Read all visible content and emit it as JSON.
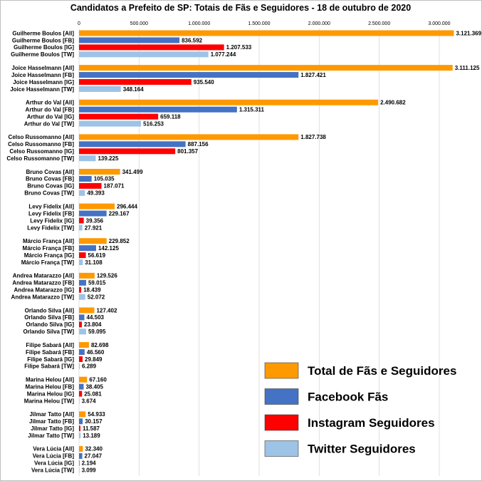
{
  "chart_data": {
    "type": "bar",
    "orientation": "horizontal",
    "title": "Candidatos a Prefeito de SP: Totais de Fãs e Seguidores - 18 de outubro de 2020",
    "xlim": [
      0,
      3200000
    ],
    "xticks": [
      "0",
      "500.000",
      "1.000.000",
      "1.500.000",
      "2.000.000",
      "2.500.000",
      "3.000.000"
    ],
    "xtick_values": [
      0,
      500000,
      1000000,
      1500000,
      2000000,
      2500000,
      3000000
    ],
    "grid": true,
    "legend_position": "bottom-right",
    "series_colors": [
      "#FF9900",
      "#4472C4",
      "#FF0000",
      "#9DC3E6"
    ],
    "legend": [
      "Total de Fãs e Seguidores",
      "Facebook Fãs",
      "Instagram Seguidores",
      "Twitter Seguidores"
    ],
    "groups": [
      {
        "candidate": "Guilherme Boulos",
        "labels": [
          "Guilherme Boulos [All]",
          "Guilherme Boulos [FB]",
          "Guilherme Boulos [IG]",
          "Guilherme Boulos [TW]"
        ],
        "values": [
          3121369,
          836592,
          1207533,
          1077244
        ],
        "display": [
          "3.121.369",
          "836.592",
          "1.207.533",
          "1.077.244"
        ]
      },
      {
        "candidate": "Joice Hasselmann",
        "labels": [
          "Joice Hasselmann [All]",
          "Joice Hasselmann [FB]",
          "Joice Hasselmann [IG]",
          "Joice Hasselmann [TW]"
        ],
        "values": [
          3111125,
          1827421,
          935540,
          348164
        ],
        "display": [
          "3.111.125",
          "1.827.421",
          "935.540",
          "348.164"
        ]
      },
      {
        "candidate": "Arthur do Val",
        "labels": [
          "Arthur do Val [All]",
          "Arthur do Val [FB]",
          "Arthur do Val [IG]",
          "Arthur do Val [TW]"
        ],
        "values": [
          2490682,
          1315311,
          659118,
          516253
        ],
        "display": [
          "2.490.682",
          "1.315.311",
          "659.118",
          "516.253"
        ]
      },
      {
        "candidate": "Celso Russomanno",
        "labels": [
          "Celso Russomanno [All]",
          "Celso Russomanno [FB]",
          "Celso Russomanno [IG]",
          "Celso Russomanno [TW]"
        ],
        "values": [
          1827738,
          887156,
          801357,
          139225
        ],
        "display": [
          "1.827.738",
          "887.156",
          "801.357",
          "139.225"
        ]
      },
      {
        "candidate": "Bruno Covas",
        "labels": [
          "Bruno Covas [All]",
          "Bruno Covas [FB]",
          "Bruno Covas [IG]",
          "Bruno Covas [TW]"
        ],
        "values": [
          341499,
          105035,
          187071,
          49393
        ],
        "display": [
          "341.499",
          "105.035",
          "187.071",
          "49.393"
        ]
      },
      {
        "candidate": "Levy Fidelix",
        "labels": [
          "Levy Fidelix [All]",
          "Levy Fidelix [FB]",
          "Levy Fidelix [IG]",
          "Levy Fidelix [TW]"
        ],
        "values": [
          296444,
          229167,
          39356,
          27921
        ],
        "display": [
          "296.444",
          "229.167",
          "39.356",
          "27.921"
        ]
      },
      {
        "candidate": "Márcio França",
        "labels": [
          "Márcio França [All]",
          "Márcio França [FB]",
          "Márcio França [IG]",
          "Márcio França [TW]"
        ],
        "values": [
          229852,
          142125,
          56619,
          31108
        ],
        "display": [
          "229.852",
          "142.125",
          "56.619",
          "31.108"
        ]
      },
      {
        "candidate": "Andrea Matarazzo",
        "labels": [
          "Andrea Matarazzo [All]",
          "Andrea Matarazzo [FB]",
          "Andrea Matarazzo [IG]",
          "Andrea Matarazzo [TW]"
        ],
        "values": [
          129526,
          59015,
          18439,
          52072
        ],
        "display": [
          "129.526",
          "59.015",
          "18.439",
          "52.072"
        ]
      },
      {
        "candidate": "Orlando Silva",
        "labels": [
          "Orlando Silva [All]",
          "Orlando Silva [FB]",
          "Orlando Silva [IG]",
          "Orlando Silva [TW]"
        ],
        "values": [
          127402,
          44503,
          23804,
          59095
        ],
        "display": [
          "127.402",
          "44.503",
          "23.804",
          "59.095"
        ]
      },
      {
        "candidate": "Filipe Sabará",
        "labels": [
          "Filipe Sabará [All]",
          "Filipe Sabará [FB]",
          "Filipe Sabará [IG]",
          "Filipe Sabará [TW]"
        ],
        "values": [
          82698,
          46560,
          29849,
          6289
        ],
        "display": [
          "82.698",
          "46.560",
          "29.849",
          "6.289"
        ]
      },
      {
        "candidate": "Marina Helou",
        "labels": [
          "Marina Helou [All]",
          "Marina Helou [FB]",
          "Marina Helou [IG]",
          "Marina Helou [TW]"
        ],
        "values": [
          67160,
          38405,
          25081,
          3674
        ],
        "display": [
          "67.160",
          "38.405",
          "25.081",
          "3.674"
        ]
      },
      {
        "candidate": "Jilmar Tatto",
        "labels": [
          "Jilmar Tatto [All]",
          "Jilmar Tatto [FB]",
          "Jilmar Tatto [IG]",
          "Jilmar Tatto [TW]"
        ],
        "values": [
          54933,
          30157,
          11587,
          13189
        ],
        "display": [
          "54.933",
          "30.157",
          "11.587",
          "13.189"
        ]
      },
      {
        "candidate": "Vera Lúcia",
        "labels": [
          "Vera Lúcia [All]",
          "Vera Lúcia [FB]",
          "Vera Lúcia [IG]",
          "Vera Lúcia [TW]"
        ],
        "values": [
          32340,
          27047,
          2194,
          3099
        ],
        "display": [
          "32.340",
          "27.047",
          "2.194",
          "3.099"
        ]
      }
    ]
  }
}
